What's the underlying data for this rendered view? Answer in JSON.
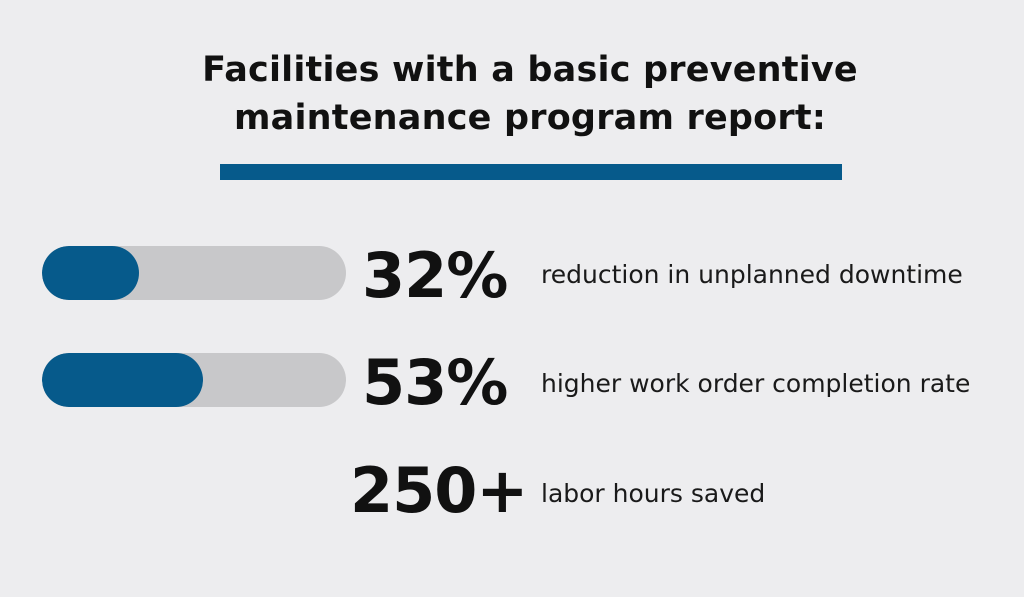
{
  "heading": {
    "line1": "Facilities with a basic preventive",
    "line2": "maintenance program report:"
  },
  "colors": {
    "accent": "#065a8b",
    "track": "#c8c8ca",
    "background": "#ededef",
    "text": "#111111"
  },
  "stats": [
    {
      "value": "32%",
      "label": "reduction in unplanned downtime",
      "bar_fraction": 0.32
    },
    {
      "value": "53%",
      "label": "higher work order completion rate",
      "bar_fraction": 0.53
    },
    {
      "value": "250+",
      "label": "labor hours saved"
    }
  ]
}
